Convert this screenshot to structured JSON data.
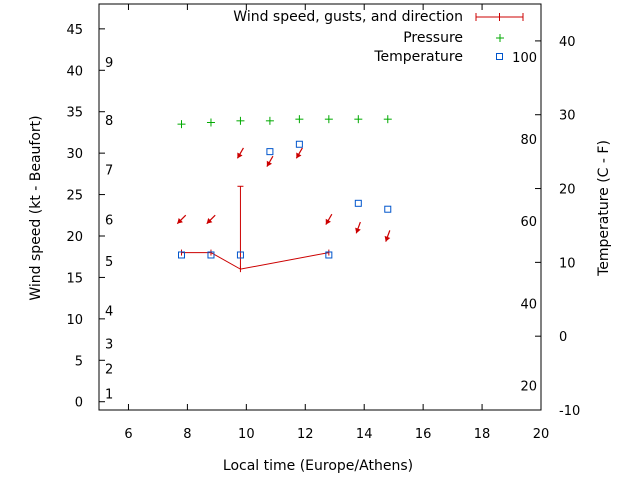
{
  "chart_data": {
    "type": "scatter",
    "xlabel": "Local time (Europe/Athens)",
    "ylabel": "Wind speed (kt - Beaufort)",
    "y2label": "Temperature (C - F)",
    "x_range": [
      5,
      20
    ],
    "x_ticks": [
      6,
      8,
      10,
      12,
      14,
      16,
      18,
      20
    ],
    "y_range": [
      -1,
      48
    ],
    "y_ticks": [
      0,
      5,
      10,
      15,
      20,
      25,
      30,
      35,
      40,
      45
    ],
    "y2_range": [
      -10,
      45
    ],
    "y2_ticks": [
      -10,
      0,
      10,
      20,
      30,
      40
    ],
    "fahrenheit_ticks": [
      {
        "label": "20",
        "celsius": -6.7
      },
      {
        "label": "40",
        "celsius": 4.4
      },
      {
        "label": "60",
        "celsius": 15.6
      },
      {
        "label": "80",
        "celsius": 26.7
      },
      {
        "label": "100",
        "celsius": 37.8
      }
    ],
    "beaufort_ticks": [
      {
        "label": "1",
        "kt": 1
      },
      {
        "label": "2",
        "kt": 4
      },
      {
        "label": "3",
        "kt": 7
      },
      {
        "label": "4",
        "kt": 11
      },
      {
        "label": "5",
        "kt": 17
      },
      {
        "label": "6",
        "kt": 22
      },
      {
        "label": "7",
        "kt": 28
      },
      {
        "label": "8",
        "kt": 34
      },
      {
        "label": "9",
        "kt": 41
      }
    ],
    "legend": [
      "Wind speed, gusts, and direction",
      "Pressure",
      "Temperature"
    ],
    "legend_position": "top-right",
    "colors": {
      "wind": "#cc0000",
      "pressure": "#00aa00",
      "temperature": "#0055cc"
    },
    "series": [
      {
        "name": "Wind speed, gusts, and direction",
        "x": [
          7.8,
          8.8,
          9.8,
          12.8
        ],
        "values": [
          18,
          18,
          16,
          18
        ],
        "gusts": [
          null,
          null,
          26,
          null
        ]
      },
      {
        "name": "Pressure",
        "x": [
          7.8,
          8.8,
          9.8,
          10.8,
          11.8,
          12.8,
          13.8,
          14.8
        ],
        "values": [
          33.5,
          33.7,
          33.9,
          33.9,
          34.1,
          34.1,
          34.1,
          34.1
        ]
      },
      {
        "name": "Temperature",
        "x": [
          7.8,
          8.8,
          9.8,
          10.8,
          11.8,
          12.8,
          13.8,
          14.8
        ],
        "values": [
          11,
          11,
          11,
          25,
          26,
          11,
          18,
          17.2
        ]
      }
    ],
    "wind_arrows": [
      {
        "x": 7.8,
        "kt": 22,
        "dir_deg": 45
      },
      {
        "x": 8.8,
        "kt": 22,
        "dir_deg": 45
      },
      {
        "x": 9.8,
        "kt": 30,
        "dir_deg": 30
      },
      {
        "x": 10.8,
        "kt": 29,
        "dir_deg": 30
      },
      {
        "x": 11.8,
        "kt": 30,
        "dir_deg": 30
      },
      {
        "x": 12.8,
        "kt": 22,
        "dir_deg": 30
      },
      {
        "x": 13.8,
        "kt": 21,
        "dir_deg": 20
      },
      {
        "x": 14.8,
        "kt": 20,
        "dir_deg": 20
      }
    ]
  }
}
